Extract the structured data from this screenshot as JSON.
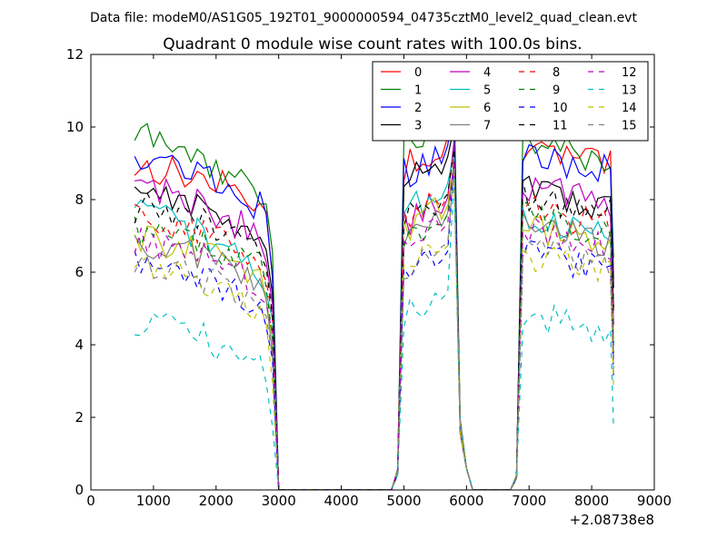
{
  "chart_data": {
    "type": "line",
    "suptitle": "Data file: modeM0/AS1G05_192T01_9000000594_04735cztM0_level2_quad_clean.evt",
    "title": "Quadrant 0 module wise count rates with 100.0s bins.",
    "xlabel": "",
    "ylabel": "",
    "xlim": [
      0,
      9000
    ],
    "ylim": [
      0,
      12
    ],
    "x_offset_label": "+2.08738e8",
    "xticks": [
      "0",
      "1000",
      "2000",
      "3000",
      "4000",
      "5000",
      "6000",
      "7000",
      "8000",
      "9000"
    ],
    "yticks": [
      "0",
      "2",
      "4",
      "6",
      "8",
      "10",
      "12"
    ],
    "legend_position": "top-right",
    "legend_columns": 4,
    "x": [
      700,
      800,
      900,
      1000,
      1100,
      1200,
      1300,
      1400,
      1500,
      1600,
      1700,
      1800,
      1900,
      2000,
      2100,
      2200,
      2300,
      2400,
      2500,
      2600,
      2700,
      2800,
      2900,
      3000,
      3100,
      3200,
      3300,
      3400,
      3500,
      3600,
      3700,
      3800,
      3900,
      4000,
      4100,
      4200,
      4300,
      4400,
      4500,
      4600,
      4700,
      4800,
      4900,
      5000,
      5100,
      5200,
      5300,
      5400,
      5500,
      5600,
      5700,
      5800,
      5900,
      6000,
      6100,
      6200,
      6300,
      6400,
      6500,
      6600,
      6700,
      6800,
      6900,
      7000,
      7100,
      7200,
      7300,
      7400,
      7500,
      7600,
      7700,
      7800,
      7900,
      8000,
      8100,
      8200,
      8300,
      8350
    ],
    "series": [
      {
        "name": "0",
        "color": "#ff0000",
        "dashed": false,
        "base": [
          8.9,
          9.0,
          8.7
        ],
        "spike": 9.9
      },
      {
        "name": "1",
        "color": "#008000",
        "dashed": false,
        "base": [
          9.8,
          9.7,
          8.9
        ],
        "spike": 11.0
      },
      {
        "name": "2",
        "color": "#0000ff",
        "dashed": false,
        "base": [
          9.3,
          8.8,
          8.6
        ],
        "spike": 10.6
      },
      {
        "name": "3",
        "color": "#000000",
        "dashed": false,
        "base": [
          8.4,
          8.5,
          7.6
        ],
        "spike": 10.0
      },
      {
        "name": "4",
        "color": "#bf00bf",
        "dashed": false,
        "base": [
          8.5,
          7.4,
          7.7
        ],
        "spike": 9.6
      },
      {
        "name": "5",
        "color": "#00bfbf",
        "dashed": false,
        "base": [
          7.7,
          7.8,
          6.8
        ],
        "spike": 9.3
      },
      {
        "name": "6",
        "color": "#bfbf00",
        "dashed": false,
        "base": [
          6.9,
          7.2,
          6.6
        ],
        "spike": 9.0
      },
      {
        "name": "7",
        "color": "#808080",
        "dashed": false,
        "base": [
          6.8,
          7.0,
          6.6
        ],
        "spike": 9.0
      },
      {
        "name": "8",
        "color": "#ff0000",
        "dashed": true,
        "base": [
          7.6,
          7.5,
          7.1
        ],
        "spike": 9.3
      },
      {
        "name": "9",
        "color": "#008000",
        "dashed": true,
        "base": [
          7.2,
          7.0,
          6.9
        ],
        "spike": 9.0
      },
      {
        "name": "10",
        "color": "#0000ff",
        "dashed": true,
        "base": [
          6.2,
          6.0,
          5.8
        ],
        "spike": 9.1
      },
      {
        "name": "11",
        "color": "#000000",
        "dashed": true,
        "base": [
          7.8,
          7.6,
          7.4
        ],
        "spike": 9.4
      },
      {
        "name": "12",
        "color": "#bf00bf",
        "dashed": true,
        "base": [
          6.9,
          6.8,
          6.4
        ],
        "spike": 9.1
      },
      {
        "name": "13",
        "color": "#00bfbf",
        "dashed": true,
        "base": [
          4.6,
          4.9,
          4.2
        ],
        "spike": 8.6
      },
      {
        "name": "14",
        "color": "#bfbf00",
        "dashed": true,
        "base": [
          6.4,
          6.2,
          5.8
        ],
        "spike": 8.9
      },
      {
        "name": "15",
        "color": "#808080",
        "dashed": true,
        "base": [
          6.2,
          6.3,
          6.0
        ],
        "spike": 8.9
      }
    ]
  }
}
